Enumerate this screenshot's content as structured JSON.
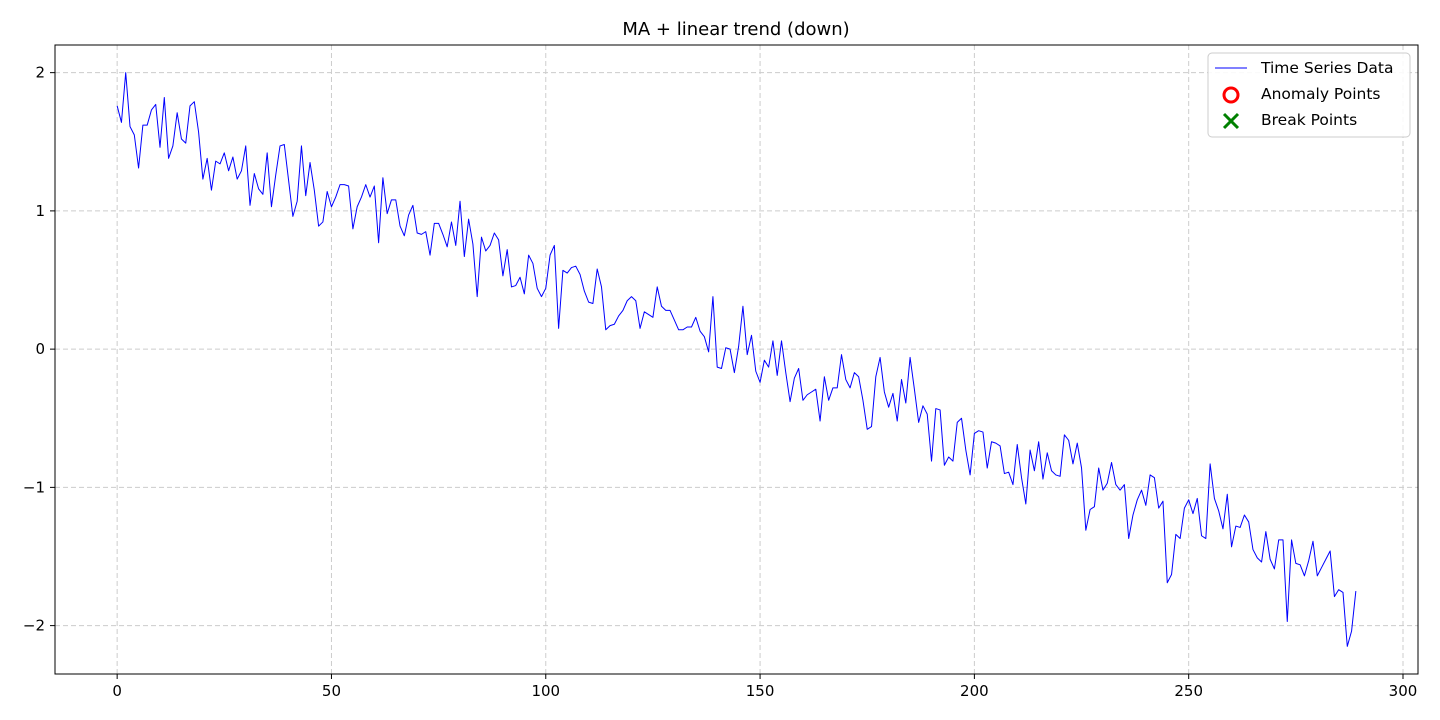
{
  "chart_data": {
    "type": "line",
    "title": "MA + linear trend (down)",
    "xlabel": "",
    "ylabel": "",
    "xlim": [
      -14.5,
      303.5
    ],
    "ylim": [
      -2.35,
      2.2
    ],
    "x_ticks": [
      0,
      50,
      100,
      150,
      200,
      250,
      300
    ],
    "x_tick_labels": [
      "0",
      "50",
      "100",
      "150",
      "200",
      "250",
      "300"
    ],
    "y_ticks": [
      -2,
      -1,
      0,
      1,
      2
    ],
    "y_tick_labels": [
      "−2",
      "−1",
      "0",
      "1",
      "2"
    ],
    "grid": true,
    "legend_position": "top-right",
    "legend": [
      {
        "label": "Time Series Data",
        "marker": "line",
        "color": "#0000ff"
      },
      {
        "label": "Anomaly Points",
        "marker": "circle",
        "color": "#ff0000"
      },
      {
        "label": "Break Points",
        "marker": "x",
        "color": "#008000"
      }
    ],
    "series": [
      {
        "name": "Time Series Data",
        "color": "#0000ff",
        "x_start": 0,
        "x_step": 1,
        "values": [
          1.76,
          1.64,
          2.0,
          1.61,
          1.55,
          1.31,
          1.62,
          1.62,
          1.73,
          1.77,
          1.46,
          1.82,
          1.38,
          1.47,
          1.71,
          1.52,
          1.49,
          1.76,
          1.79,
          1.57,
          1.23,
          1.38,
          1.15,
          1.36,
          1.34,
          1.42,
          1.29,
          1.39,
          1.23,
          1.29,
          1.47,
          1.04,
          1.27,
          1.16,
          1.12,
          1.42,
          1.03,
          1.26,
          1.47,
          1.48,
          1.22,
          0.96,
          1.07,
          1.47,
          1.11,
          1.35,
          1.15,
          0.89,
          0.92,
          1.14,
          1.03,
          1.1,
          1.19,
          1.19,
          1.18,
          0.87,
          1.03,
          1.1,
          1.19,
          1.1,
          1.18,
          0.77,
          1.24,
          0.98,
          1.08,
          1.08,
          0.89,
          0.82,
          0.97,
          1.04,
          0.84,
          0.83,
          0.85,
          0.68,
          0.91,
          0.91,
          0.83,
          0.74,
          0.92,
          0.75,
          1.07,
          0.67,
          0.94,
          0.76,
          0.38,
          0.81,
          0.71,
          0.75,
          0.84,
          0.79,
          0.53,
          0.72,
          0.45,
          0.46,
          0.52,
          0.4,
          0.68,
          0.62,
          0.44,
          0.38,
          0.44,
          0.68,
          0.75,
          0.15,
          0.57,
          0.55,
          0.59,
          0.6,
          0.54,
          0.42,
          0.34,
          0.33,
          0.58,
          0.45,
          0.14,
          0.17,
          0.18,
          0.24,
          0.28,
          0.35,
          0.38,
          0.35,
          0.15,
          0.27,
          0.25,
          0.23,
          0.45,
          0.31,
          0.28,
          0.28,
          0.21,
          0.14,
          0.14,
          0.16,
          0.16,
          0.23,
          0.13,
          0.09,
          -0.02,
          0.38,
          -0.13,
          -0.14,
          0.01,
          0.0,
          -0.17,
          0.02,
          0.31,
          -0.04,
          0.1,
          -0.16,
          -0.24,
          -0.08,
          -0.13,
          0.06,
          -0.19,
          0.06,
          -0.17,
          -0.38,
          -0.21,
          -0.14,
          -0.37,
          -0.33,
          -0.31,
          -0.29,
          -0.52,
          -0.2,
          -0.37,
          -0.28,
          -0.28,
          -0.04,
          -0.22,
          -0.28,
          -0.17,
          -0.2,
          -0.37,
          -0.58,
          -0.56,
          -0.2,
          -0.06,
          -0.31,
          -0.42,
          -0.32,
          -0.52,
          -0.22,
          -0.39,
          -0.06,
          -0.29,
          -0.53,
          -0.41,
          -0.47,
          -0.81,
          -0.43,
          -0.44,
          -0.84,
          -0.78,
          -0.81,
          -0.53,
          -0.5,
          -0.73,
          -0.91,
          -0.61,
          -0.59,
          -0.6,
          -0.86,
          -0.67,
          -0.68,
          -0.7,
          -0.9,
          -0.89,
          -0.98,
          -0.69,
          -0.93,
          -1.12,
          -0.73,
          -0.88,
          -0.67,
          -0.94,
          -0.75,
          -0.88,
          -0.91,
          -0.92,
          -0.62,
          -0.66,
          -0.83,
          -0.68,
          -0.86,
          -1.31,
          -1.16,
          -1.14,
          -0.86,
          -1.02,
          -0.97,
          -0.82,
          -0.98,
          -1.02,
          -0.98,
          -1.37,
          -1.2,
          -1.09,
          -1.02,
          -1.13,
          -0.91,
          -0.93,
          -1.15,
          -1.1,
          -1.69,
          -1.63,
          -1.34,
          -1.37,
          -1.15,
          -1.09,
          -1.19,
          -1.08,
          -1.35,
          -1.37,
          -0.83,
          -1.08,
          -1.17,
          -1.3,
          -1.05,
          -1.43,
          -1.28,
          -1.29,
          -1.2,
          -1.25,
          -1.45,
          -1.51,
          -1.54,
          -1.32,
          -1.52,
          -1.59,
          -1.38,
          -1.38,
          -1.97,
          -1.38,
          -1.55,
          -1.56,
          -1.64,
          -1.53,
          -1.39,
          -1.64,
          -1.58,
          -1.52,
          -1.46,
          -1.79,
          -1.74,
          -1.76,
          -2.15,
          -2.04,
          -1.75
        ]
      }
    ]
  }
}
